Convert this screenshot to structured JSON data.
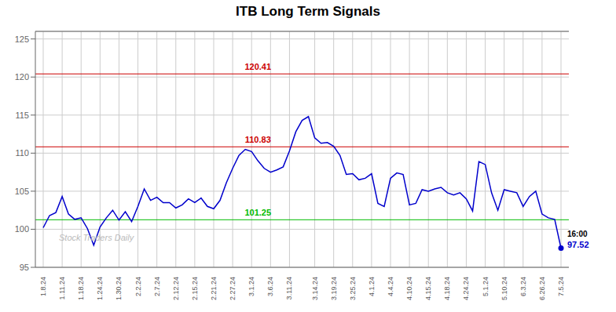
{
  "chart_data": {
    "type": "line",
    "title": "ITB Long Term Signals",
    "color": "#0000cc",
    "marker": "last",
    "grid": true,
    "ylim": [
      95,
      126
    ],
    "yticks": [
      95,
      100,
      105,
      110,
      115,
      120,
      125
    ],
    "categories": [
      "1.8.24",
      null,
      null,
      "1.11.24",
      null,
      null,
      "1.18.24",
      null,
      null,
      "1.24.24",
      null,
      null,
      "1.30.24",
      null,
      null,
      "2.2.24",
      null,
      null,
      "2.7.24",
      null,
      null,
      "2.12.24",
      null,
      null,
      "2.15.24",
      null,
      null,
      "2.21.24",
      null,
      null,
      "2.27.24",
      null,
      null,
      "3.1.24",
      null,
      null,
      "3.6.24",
      null,
      null,
      "3.11.24",
      null,
      null,
      null,
      "3.14.24",
      null,
      null,
      "3.19.24",
      null,
      null,
      "3.25.24",
      null,
      null,
      "4.1.24",
      null,
      null,
      "4.4.24",
      null,
      null,
      "4.10.24",
      null,
      null,
      "4.15.24",
      null,
      null,
      "4.18.24",
      null,
      null,
      "4.24.24",
      null,
      null,
      "5.1.24",
      null,
      null,
      "5.10.24",
      null,
      null,
      "6.3.24",
      null,
      null,
      "6.26.24",
      null,
      null,
      "7.5.24"
    ],
    "values": [
      100.2,
      101.8,
      102.2,
      104.3,
      102.0,
      101.3,
      101.5,
      100.1,
      97.9,
      100.3,
      101.5,
      102.5,
      101.2,
      102.3,
      101.0,
      103.0,
      105.3,
      103.8,
      104.2,
      103.5,
      103.5,
      102.8,
      103.2,
      104.0,
      103.5,
      104.1,
      103.0,
      102.7,
      103.8,
      106.1,
      108.0,
      109.7,
      110.5,
      110.2,
      109.0,
      108.0,
      107.5,
      107.8,
      108.2,
      110.3,
      112.8,
      114.3,
      114.8,
      112.0,
      111.3,
      111.4,
      110.9,
      109.7,
      107.2,
      107.3,
      106.5,
      106.7,
      107.3,
      103.4,
      103.0,
      106.7,
      107.4,
      107.2,
      103.2,
      103.4,
      105.2,
      105.0,
      105.3,
      105.5,
      104.8,
      104.5,
      104.8,
      104.0,
      102.4,
      108.9,
      108.5,
      104.8,
      102.5,
      105.2,
      105.0,
      104.8,
      103.0,
      104.3,
      105.0,
      102.0,
      101.5,
      101.3,
      97.52
    ],
    "hlines": [
      {
        "value": 120.41,
        "label": "120.41",
        "color": "#cc0000"
      },
      {
        "value": 110.83,
        "label": "110.83",
        "color": "#cc0000"
      },
      {
        "value": 101.25,
        "label": "101.25",
        "color": "#00bb00"
      }
    ],
    "annotations": [
      {
        "text": "16:00",
        "color": "#000000"
      },
      {
        "text": "97.52",
        "color": "#0000cc"
      }
    ],
    "watermark": "Stock Traders Daily"
  }
}
